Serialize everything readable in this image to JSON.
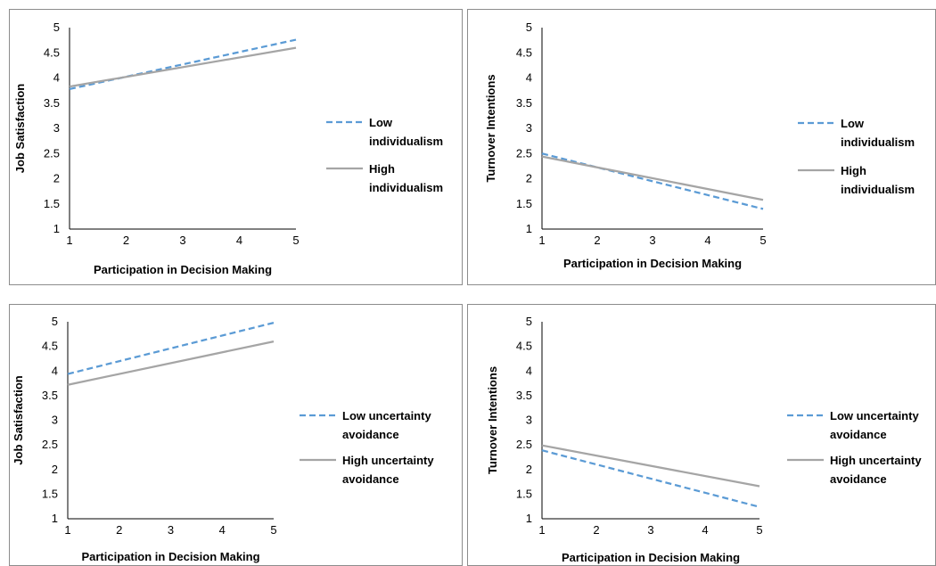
{
  "chart_data": [
    {
      "type": "line",
      "xlabel": "Participation in Decision Making",
      "ylabel": "Job Satisfaction",
      "xlim": [
        1,
        5
      ],
      "ylim": [
        1,
        5
      ],
      "x_ticks": [
        "1",
        "2",
        "3",
        "4",
        "5"
      ],
      "y_ticks": [
        "1",
        "1.5",
        "2",
        "2.5",
        "3",
        "3.5",
        "4",
        "4.5",
        "5"
      ],
      "grid": false,
      "legend_position": "right",
      "x": [
        1,
        5
      ],
      "series": [
        {
          "name_lines": [
            "Low",
            "individualism"
          ],
          "values": [
            3.78,
            4.76
          ],
          "color": "#5b9bd5",
          "style": "dashed"
        },
        {
          "name_lines": [
            "High",
            "individualism"
          ],
          "values": [
            3.83,
            4.6
          ],
          "color": "#a5a5a5",
          "style": "solid"
        }
      ]
    },
    {
      "type": "line",
      "xlabel": "Participation in Decision Making",
      "ylabel": "Turnover Intentions",
      "xlim": [
        1,
        5
      ],
      "ylim": [
        1,
        5
      ],
      "x_ticks": [
        "1",
        "2",
        "3",
        "4",
        "5"
      ],
      "y_ticks": [
        "1",
        "1.5",
        "2",
        "2.5",
        "3",
        "3.5",
        "4",
        "4.5",
        "5"
      ],
      "grid": false,
      "legend_position": "right",
      "x": [
        1,
        5
      ],
      "series": [
        {
          "name_lines": [
            "Low",
            "individualism"
          ],
          "values": [
            2.5,
            1.4
          ],
          "color": "#5b9bd5",
          "style": "dashed"
        },
        {
          "name_lines": [
            "High",
            "individualism"
          ],
          "values": [
            2.44,
            1.58
          ],
          "color": "#a5a5a5",
          "style": "solid"
        }
      ]
    },
    {
      "type": "line",
      "xlabel": "Participation in Decision Making",
      "ylabel": "Job Satisfaction",
      "xlim": [
        1,
        5
      ],
      "ylim": [
        1,
        5
      ],
      "x_ticks": [
        "1",
        "2",
        "3",
        "4",
        "5"
      ],
      "y_ticks": [
        "1",
        "1.5",
        "2",
        "2.5",
        "3",
        "3.5",
        "4",
        "4.5",
        "5"
      ],
      "grid": false,
      "legend_position": "right",
      "x": [
        1,
        5
      ],
      "series": [
        {
          "name_lines": [
            "Low uncertainty",
            "avoidance"
          ],
          "values": [
            3.94,
            4.98
          ],
          "color": "#5b9bd5",
          "style": "dashed"
        },
        {
          "name_lines": [
            "High uncertainty",
            "avoidance"
          ],
          "values": [
            3.72,
            4.6
          ],
          "color": "#a5a5a5",
          "style": "solid"
        }
      ]
    },
    {
      "type": "line",
      "xlabel": "Participation in Decision Making",
      "ylabel": "Turnover Intentions",
      "xlim": [
        1,
        5
      ],
      "ylim": [
        1,
        5
      ],
      "x_ticks": [
        "1",
        "2",
        "3",
        "4",
        "5"
      ],
      "y_ticks": [
        "1",
        "1.5",
        "2",
        "2.5",
        "3",
        "3.5",
        "4",
        "4.5",
        "5"
      ],
      "grid": false,
      "legend_position": "right",
      "x": [
        1,
        5
      ],
      "series": [
        {
          "name_lines": [
            "Low uncertainty",
            "avoidance"
          ],
          "values": [
            2.39,
            1.24
          ],
          "color": "#5b9bd5",
          "style": "dashed"
        },
        {
          "name_lines": [
            "High uncertainty",
            "avoidance"
          ],
          "values": [
            2.49,
            1.66
          ],
          "color": "#a5a5a5",
          "style": "solid"
        }
      ]
    }
  ]
}
